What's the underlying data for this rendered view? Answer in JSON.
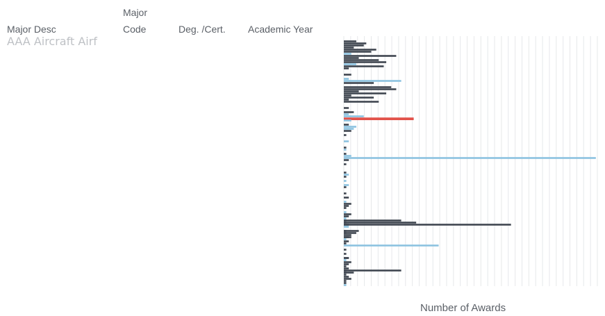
{
  "headers": {
    "major_desc": "Major Desc",
    "major_code_line1": "Major",
    "major_code_line2": "Code",
    "degree": "Deg. /Cert.",
    "academic_year": "Academic Year"
  },
  "table": {
    "first_row": {
      "major_desc": "AAA Aircraft Airf"
    }
  },
  "colors": {
    "dark": "#3f4650",
    "light": "#8cc2e0",
    "highlight": "#e2524a",
    "grid": "#e6e8ea"
  },
  "chart_data": {
    "type": "bar",
    "orientation": "horizontal",
    "title": "",
    "xlabel": "Number of Awards",
    "ylabel": "",
    "grid": true,
    "row_count": 120,
    "bars": [
      {
        "row": 2,
        "value": 5,
        "color": "dark"
      },
      {
        "row": 3,
        "value": 9,
        "color": "dark"
      },
      {
        "row": 4,
        "value": 8,
        "color": "dark"
      },
      {
        "row": 5,
        "value": 4,
        "color": "dark"
      },
      {
        "row": 6,
        "value": 13,
        "color": "dark"
      },
      {
        "row": 7,
        "value": 11,
        "color": "dark"
      },
      {
        "row": 8,
        "value": 3,
        "color": "light"
      },
      {
        "row": 9,
        "value": 21,
        "color": "dark"
      },
      {
        "row": 10,
        "value": 6,
        "color": "dark"
      },
      {
        "row": 11,
        "value": 14,
        "color": "dark"
      },
      {
        "row": 12,
        "value": 17,
        "color": "dark"
      },
      {
        "row": 13,
        "value": 5,
        "color": "light"
      },
      {
        "row": 14,
        "value": 16,
        "color": "dark"
      },
      {
        "row": 15,
        "value": 2,
        "color": "dark"
      },
      {
        "row": 18,
        "value": 3,
        "color": "dark"
      },
      {
        "row": 20,
        "value": 2,
        "color": "light"
      },
      {
        "row": 21,
        "value": 23,
        "color": "light"
      },
      {
        "row": 22,
        "value": 12,
        "color": "dark"
      },
      {
        "row": 24,
        "value": 19,
        "color": "dark"
      },
      {
        "row": 25,
        "value": 21,
        "color": "dark"
      },
      {
        "row": 26,
        "value": 6,
        "color": "dark"
      },
      {
        "row": 27,
        "value": 17,
        "color": "dark"
      },
      {
        "row": 28,
        "value": 3,
        "color": "dark"
      },
      {
        "row": 29,
        "value": 12,
        "color": "dark"
      },
      {
        "row": 30,
        "value": 2,
        "color": "dark"
      },
      {
        "row": 31,
        "value": 14,
        "color": "dark"
      },
      {
        "row": 34,
        "value": 2,
        "color": "dark"
      },
      {
        "row": 36,
        "value": 4,
        "color": "dark"
      },
      {
        "row": 37,
        "value": 2,
        "color": "light"
      },
      {
        "row": 38,
        "value": 8,
        "color": "light"
      },
      {
        "row": 39,
        "value": 28,
        "color": "highlight"
      },
      {
        "row": 40,
        "value": 3,
        "color": "light"
      },
      {
        "row": 42,
        "value": 2,
        "color": "dark"
      },
      {
        "row": 43,
        "value": 5,
        "color": "light"
      },
      {
        "row": 44,
        "value": 4,
        "color": "light"
      },
      {
        "row": 45,
        "value": 3,
        "color": "dark"
      },
      {
        "row": 47,
        "value": 1,
        "color": "dark"
      },
      {
        "row": 50,
        "value": 2,
        "color": "light"
      },
      {
        "row": 53,
        "value": 1,
        "color": "dark"
      },
      {
        "row": 54,
        "value": 1,
        "color": "light"
      },
      {
        "row": 56,
        "value": 1,
        "color": "dark"
      },
      {
        "row": 57,
        "value": 3,
        "color": "light"
      },
      {
        "row": 58,
        "value": 101,
        "color": "light"
      },
      {
        "row": 59,
        "value": 2,
        "color": "dark"
      },
      {
        "row": 61,
        "value": 1,
        "color": "dark"
      },
      {
        "row": 65,
        "value": 1,
        "color": "dark"
      },
      {
        "row": 66,
        "value": 2,
        "color": "light"
      },
      {
        "row": 67,
        "value": 1,
        "color": "dark"
      },
      {
        "row": 69,
        "value": 1,
        "color": "light"
      },
      {
        "row": 71,
        "value": 2,
        "color": "light"
      },
      {
        "row": 72,
        "value": 1,
        "color": "dark"
      },
      {
        "row": 75,
        "value": 1,
        "color": "dark"
      },
      {
        "row": 77,
        "value": 2,
        "color": "dark"
      },
      {
        "row": 79,
        "value": 1,
        "color": "light"
      },
      {
        "row": 80,
        "value": 3,
        "color": "dark"
      },
      {
        "row": 81,
        "value": 2,
        "color": "dark"
      },
      {
        "row": 82,
        "value": 1,
        "color": "dark"
      },
      {
        "row": 84,
        "value": 1,
        "color": "light"
      },
      {
        "row": 85,
        "value": 3,
        "color": "dark"
      },
      {
        "row": 86,
        "value": 2,
        "color": "dark"
      },
      {
        "row": 87,
        "value": 1,
        "color": "light"
      },
      {
        "row": 88,
        "value": 1,
        "color": "dark"
      },
      {
        "row": 89,
        "value": 1,
        "color": "dark"
      },
      {
        "row": 90,
        "value": 2,
        "color": "dark"
      },
      {
        "row": 91,
        "value": 2,
        "color": "light"
      },
      {
        "row": 93,
        "value": 1,
        "color": "dark"
      },
      {
        "row": 94,
        "value": 1,
        "color": "dark"
      },
      {
        "row": 95,
        "value": 3,
        "color": "dark"
      },
      {
        "row": 96,
        "value": 2,
        "color": "dark"
      },
      {
        "row": 97,
        "value": 1,
        "color": "light"
      },
      {
        "row": 98,
        "value": 2,
        "color": "dark"
      },
      {
        "row": 99,
        "value": 1,
        "color": "dark"
      },
      {
        "row": 100,
        "value": 38,
        "color": "light"
      },
      {
        "row": 102,
        "value": 1,
        "color": "dark"
      },
      {
        "row": 104,
        "value": 1,
        "color": "dark"
      },
      {
        "row": 106,
        "value": 2,
        "color": "dark"
      },
      {
        "row": 107,
        "value": 1,
        "color": "light"
      },
      {
        "row": 108,
        "value": 3,
        "color": "dark"
      },
      {
        "row": 109,
        "value": 2,
        "color": "dark"
      },
      {
        "row": 110,
        "value": 1,
        "color": "dark"
      },
      {
        "row": 111,
        "value": 2,
        "color": "dark"
      },
      {
        "row": 112,
        "value": 1,
        "color": "dark"
      },
      {
        "row": 113,
        "value": 1,
        "color": "dark"
      },
      {
        "row": 114,
        "value": 1,
        "color": "dark"
      },
      {
        "row": 115,
        "value": 2,
        "color": "dark"
      },
      {
        "row": 116,
        "value": 3,
        "color": "dark"
      },
      {
        "row": 117,
        "value": 1,
        "color": "dark"
      },
      {
        "row": 118,
        "value": 1,
        "color": "dark"
      },
      {
        "row": 119,
        "value": 1,
        "color": "light"
      }
    ],
    "extra_bars": [
      {
        "row": 88,
        "value": 23,
        "color": "dark"
      },
      {
        "row": 89,
        "value": 29,
        "color": "dark"
      },
      {
        "row": 90,
        "value": 67,
        "color": "dark"
      },
      {
        "row": 93,
        "value": 6,
        "color": "dark"
      },
      {
        "row": 94,
        "value": 5,
        "color": "dark"
      },
      {
        "row": 96,
        "value": 3,
        "color": "dark"
      },
      {
        "row": 106,
        "value": 2,
        "color": "dark"
      },
      {
        "row": 112,
        "value": 23,
        "color": "dark"
      },
      {
        "row": 113,
        "value": 4,
        "color": "dark"
      }
    ],
    "xlim": [
      0,
      103
    ]
  }
}
